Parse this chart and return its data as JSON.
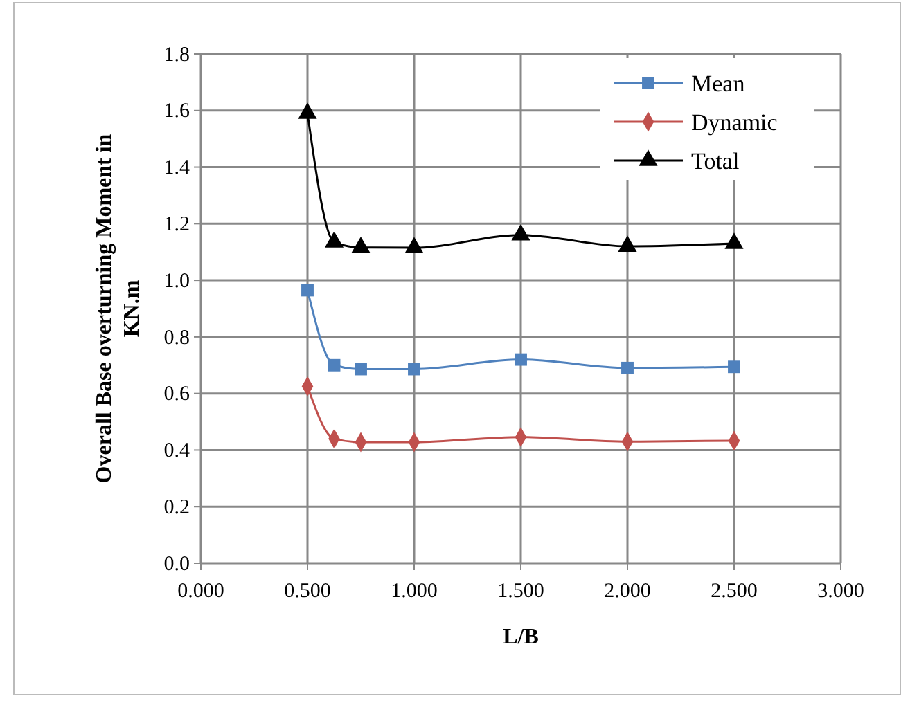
{
  "chart_data": {
    "type": "line",
    "xlabel": "L/B",
    "ylabel": "Overall Base overturning Moment in KN.m",
    "x": [
      0.5,
      0.625,
      0.75,
      1.0,
      1.5,
      2.0,
      2.5
    ],
    "series": [
      {
        "name": "Mean",
        "color": "#4f81bd",
        "marker": "square",
        "values": [
          0.965,
          0.7,
          0.686,
          0.686,
          0.72,
          0.69,
          0.694
        ]
      },
      {
        "name": "Dynamic",
        "color": "#c0504d",
        "marker": "diamond",
        "values": [
          0.625,
          0.44,
          0.428,
          0.428,
          0.446,
          0.43,
          0.433
        ]
      },
      {
        "name": "Total",
        "color": "#000000",
        "marker": "triangle",
        "values": [
          1.59,
          1.135,
          1.116,
          1.115,
          1.16,
          1.12,
          1.13
        ]
      }
    ],
    "xlim": [
      0,
      3
    ],
    "xticks": [
      {
        "value": 0,
        "label": "0.000"
      },
      {
        "value": 0.5,
        "label": "0.500"
      },
      {
        "value": 1,
        "label": "1.000"
      },
      {
        "value": 1.5,
        "label": "1.500"
      },
      {
        "value": 2,
        "label": "2.000"
      },
      {
        "value": 2.5,
        "label": "2.500"
      },
      {
        "value": 3,
        "label": "3.000"
      }
    ],
    "ylim": [
      0,
      1.8
    ],
    "yticks": [
      {
        "value": 0,
        "label": "0.0"
      },
      {
        "value": 0.2,
        "label": "0.2"
      },
      {
        "value": 0.4,
        "label": "0.4"
      },
      {
        "value": 0.6,
        "label": "0.6"
      },
      {
        "value": 0.8,
        "label": "0.8"
      },
      {
        "value": 1,
        "label": "1.0"
      },
      {
        "value": 1.2,
        "label": "1.2"
      },
      {
        "value": 1.4,
        "label": "1.4"
      },
      {
        "value": 1.6,
        "label": "1.6"
      },
      {
        "value": 1.8,
        "label": "1.8"
      }
    ],
    "grid": true,
    "legend": "top right",
    "line_style": "solid"
  }
}
